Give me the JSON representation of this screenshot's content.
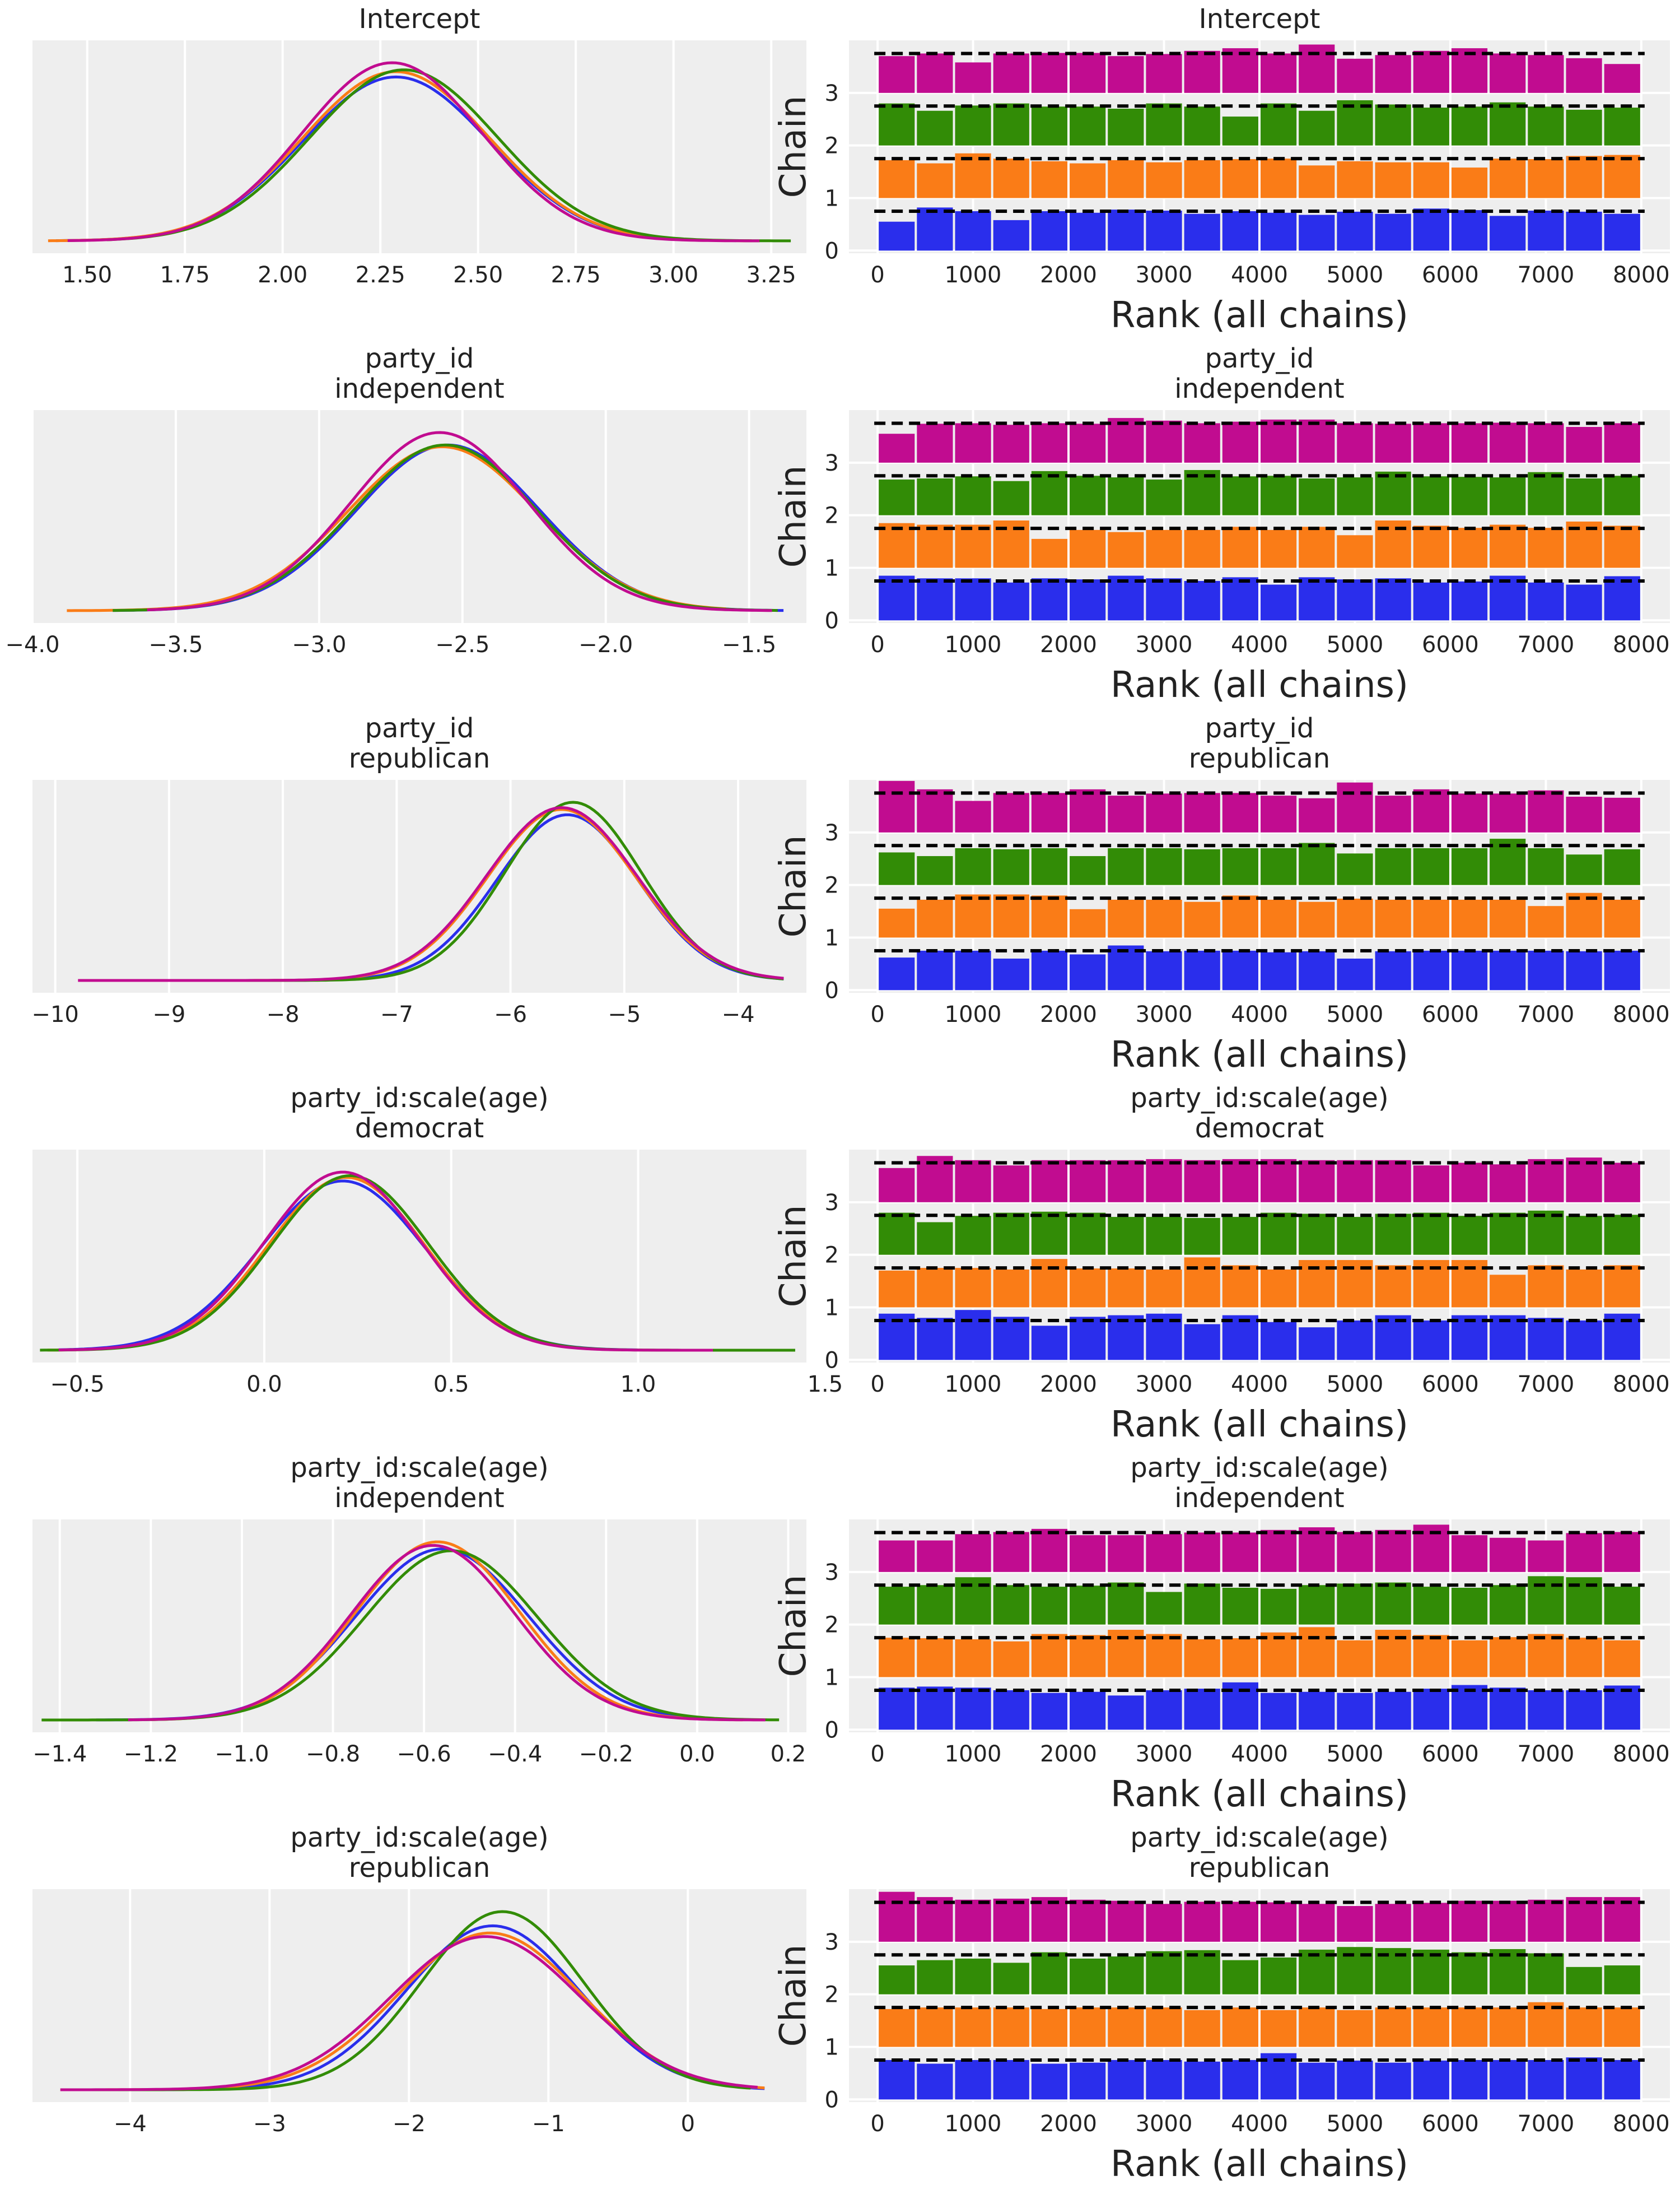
{
  "colors": {
    "chain0": "#2a2eec",
    "chain1": "#fa7c17",
    "chain2": "#328c06",
    "chain3": "#c10c90"
  },
  "rank_axis": {
    "xlabel": "Rank (all chains)",
    "ylabel": "Chain",
    "xlim": [
      -300,
      8300
    ],
    "xticks": [
      0,
      1000,
      2000,
      3000,
      4000,
      5000,
      6000,
      7000,
      8000
    ],
    "yticks": [
      0,
      1,
      2,
      3
    ],
    "bins": 20,
    "draws_per_bin": 400,
    "expected_height": 0.75
  },
  "chart_data": [
    {
      "type": "line",
      "panel": "kde",
      "title": "Intercept",
      "xlim": [
        1.36,
        3.34
      ],
      "xticks": [
        1.5,
        1.75,
        2.0,
        2.25,
        2.5,
        2.75,
        3.0,
        3.25
      ],
      "xtick_labels": [
        "1.50",
        "1.75",
        "2.00",
        "2.25",
        "2.50",
        "2.75",
        "3.00",
        "3.25"
      ],
      "series": [
        {
          "name": "chain 0",
          "mu": 2.29,
          "sd": 0.24,
          "peak": 0.92,
          "x_range": [
            1.42,
            3.16
          ]
        },
        {
          "name": "chain 1",
          "mu": 2.29,
          "sd": 0.24,
          "peak": 0.95,
          "x_range": [
            1.4,
            3.2
          ]
        },
        {
          "name": "chain 2",
          "mu": 2.31,
          "sd": 0.24,
          "peak": 0.96,
          "x_range": [
            1.55,
            3.3
          ]
        },
        {
          "name": "chain 3",
          "mu": 2.28,
          "sd": 0.23,
          "peak": 1.0,
          "x_range": [
            1.45,
            3.22
          ]
        }
      ]
    },
    {
      "type": "bar",
      "panel": "rank",
      "title": "Intercept",
      "series": [
        {
          "name": "chain 0",
          "values": [
            0.55,
            0.82,
            0.75,
            0.58,
            0.75,
            0.72,
            0.78,
            0.76,
            0.7,
            0.75,
            0.72,
            0.68,
            0.74,
            0.7,
            0.8,
            0.77,
            0.66,
            0.76,
            0.74,
            0.7
          ]
        },
        {
          "name": "chain 1",
          "values": [
            0.72,
            0.66,
            0.85,
            0.75,
            0.7,
            0.66,
            0.72,
            0.68,
            0.72,
            0.74,
            0.75,
            0.62,
            0.7,
            0.68,
            0.68,
            0.58,
            0.75,
            0.74,
            0.8,
            0.82
          ]
        },
        {
          "name": "chain 2",
          "values": [
            0.8,
            0.66,
            0.76,
            0.8,
            0.74,
            0.74,
            0.7,
            0.8,
            0.74,
            0.55,
            0.8,
            0.66,
            0.86,
            0.78,
            0.72,
            0.74,
            0.82,
            0.74,
            0.68,
            0.72
          ]
        },
        {
          "name": "chain 3",
          "values": [
            0.7,
            0.75,
            0.58,
            0.75,
            0.76,
            0.76,
            0.7,
            0.74,
            0.8,
            0.85,
            0.75,
            0.92,
            0.65,
            0.72,
            0.8,
            0.85,
            0.75,
            0.72,
            0.66,
            0.55
          ]
        }
      ]
    },
    {
      "type": "line",
      "panel": "kde",
      "title": "party_id\nindependent",
      "xlim": [
        -4.0,
        -1.3
      ],
      "xticks": [
        -4.0,
        -3.5,
        -3.0,
        -2.5,
        -2.0,
        -1.5
      ],
      "xtick_labels": [
        "−4.0",
        "−3.5",
        "−3.0",
        "−2.5",
        "−2.0",
        "−1.5"
      ],
      "series": [
        {
          "name": "chain 0",
          "mu": -2.55,
          "sd": 0.32,
          "peak": 0.93,
          "x_range": [
            -3.72,
            -1.38
          ]
        },
        {
          "name": "chain 1",
          "mu": -2.57,
          "sd": 0.33,
          "peak": 0.92,
          "x_range": [
            -3.88,
            -1.58
          ]
        },
        {
          "name": "chain 2",
          "mu": -2.56,
          "sd": 0.32,
          "peak": 0.93,
          "x_range": [
            -3.72,
            -1.4
          ]
        },
        {
          "name": "chain 3",
          "mu": -2.58,
          "sd": 0.31,
          "peak": 1.0,
          "x_range": [
            -3.6,
            -1.42
          ]
        }
      ]
    },
    {
      "type": "bar",
      "panel": "rank",
      "title": "party_id\nindependent",
      "series": [
        {
          "name": "chain 0",
          "values": [
            0.85,
            0.8,
            0.8,
            0.72,
            0.8,
            0.78,
            0.85,
            0.8,
            0.75,
            0.82,
            0.68,
            0.82,
            0.78,
            0.8,
            0.72,
            0.74,
            0.85,
            0.72,
            0.68,
            0.84
          ]
        },
        {
          "name": "chain 1",
          "values": [
            0.85,
            0.82,
            0.82,
            0.9,
            0.55,
            0.72,
            0.68,
            0.72,
            0.72,
            0.78,
            0.72,
            0.78,
            0.62,
            0.9,
            0.8,
            0.76,
            0.82,
            0.76,
            0.88,
            0.8
          ]
        },
        {
          "name": "chain 2",
          "values": [
            0.68,
            0.7,
            0.74,
            0.65,
            0.84,
            0.75,
            0.72,
            0.68,
            0.86,
            0.74,
            0.75,
            0.7,
            0.72,
            0.83,
            0.74,
            0.73,
            0.72,
            0.82,
            0.7,
            0.75
          ]
        },
        {
          "name": "chain 3",
          "values": [
            0.55,
            0.74,
            0.75,
            0.72,
            0.75,
            0.74,
            0.85,
            0.8,
            0.75,
            0.78,
            0.82,
            0.82,
            0.75,
            0.74,
            0.75,
            0.75,
            0.76,
            0.75,
            0.68,
            0.75
          ]
        }
      ]
    },
    {
      "type": "line",
      "panel": "kde",
      "title": "party_id\nrepublican",
      "xlim": [
        -10.2,
        -3.4
      ],
      "xticks": [
        -10,
        -9,
        -8,
        -7,
        -6,
        -5,
        -4
      ],
      "xtick_labels": [
        "−10",
        "−9",
        "−8",
        "−7",
        "−6",
        "−5",
        "−4"
      ],
      "series": [
        {
          "name": "chain 0",
          "mu": -5.5,
          "sd": 0.62,
          "peak": 0.93,
          "x_range": [
            -9.5,
            -3.6
          ]
        },
        {
          "name": "chain 1",
          "mu": -5.55,
          "sd": 0.65,
          "peak": 0.96,
          "x_range": [
            -9.3,
            -3.85
          ]
        },
        {
          "name": "chain 2",
          "mu": -5.45,
          "sd": 0.6,
          "peak": 1.0,
          "x_range": [
            -9.4,
            -3.6
          ]
        },
        {
          "name": "chain 3",
          "mu": -5.55,
          "sd": 0.66,
          "peak": 0.97,
          "x_range": [
            -9.8,
            -3.6
          ]
        }
      ]
    },
    {
      "type": "bar",
      "panel": "rank",
      "title": "party_id\nrepublican",
      "series": [
        {
          "name": "chain 0",
          "values": [
            0.62,
            0.75,
            0.75,
            0.6,
            0.75,
            0.68,
            0.85,
            0.74,
            0.75,
            0.75,
            0.72,
            0.74,
            0.6,
            0.74,
            0.75,
            0.75,
            0.75,
            0.75,
            0.74,
            0.75
          ]
        },
        {
          "name": "chain 1",
          "values": [
            0.55,
            0.72,
            0.82,
            0.82,
            0.8,
            0.54,
            0.72,
            0.72,
            0.68,
            0.8,
            0.72,
            0.68,
            0.74,
            0.72,
            0.72,
            0.72,
            0.72,
            0.6,
            0.85,
            0.72
          ]
        },
        {
          "name": "chain 2",
          "values": [
            0.62,
            0.55,
            0.7,
            0.68,
            0.7,
            0.55,
            0.7,
            0.7,
            0.68,
            0.7,
            0.7,
            0.8,
            0.6,
            0.7,
            0.7,
            0.7,
            0.88,
            0.7,
            0.58,
            0.68
          ]
        },
        {
          "name": "chain 3",
          "values": [
            0.98,
            0.82,
            0.6,
            0.75,
            0.75,
            0.82,
            0.7,
            0.74,
            0.75,
            0.75,
            0.7,
            0.65,
            0.95,
            0.7,
            0.82,
            0.74,
            0.74,
            0.8,
            0.68,
            0.66
          ]
        }
      ]
    },
    {
      "type": "line",
      "panel": "kde",
      "title": "party_id:scale(age)\ndemocrat",
      "xlim": [
        -0.62,
        1.45
      ],
      "xticks": [
        -0.5,
        0.0,
        0.5,
        1.0,
        1.5
      ],
      "xtick_labels": [
        "−0.5",
        "0.0",
        "0.5",
        "1.0",
        "1.5"
      ],
      "series": [
        {
          "name": "chain 0",
          "mu": 0.21,
          "sd": 0.22,
          "peak": 0.95,
          "x_range": [
            -0.55,
            1.0
          ]
        },
        {
          "name": "chain 1",
          "mu": 0.22,
          "sd": 0.21,
          "peak": 0.97,
          "x_range": [
            -0.58,
            0.95
          ]
        },
        {
          "name": "chain 2",
          "mu": 0.23,
          "sd": 0.21,
          "peak": 0.98,
          "x_range": [
            -0.6,
            1.42
          ]
        },
        {
          "name": "chain 3",
          "mu": 0.21,
          "sd": 0.21,
          "peak": 1.0,
          "x_range": [
            -0.55,
            1.2
          ]
        }
      ]
    },
    {
      "type": "bar",
      "panel": "rank",
      "title": "party_id:scale(age)\ndemocrat",
      "series": [
        {
          "name": "chain 0",
          "values": [
            0.88,
            0.8,
            0.95,
            0.82,
            0.65,
            0.82,
            0.85,
            0.88,
            0.68,
            0.85,
            0.72,
            0.62,
            0.75,
            0.85,
            0.75,
            0.85,
            0.85,
            0.8,
            0.75,
            0.88
          ]
        },
        {
          "name": "chain 1",
          "values": [
            0.7,
            0.75,
            0.75,
            0.72,
            0.92,
            0.74,
            0.74,
            0.72,
            0.95,
            0.8,
            0.72,
            0.9,
            0.9,
            0.8,
            0.9,
            0.9,
            0.62,
            0.8,
            0.72,
            0.8
          ]
        },
        {
          "name": "chain 2",
          "values": [
            0.8,
            0.62,
            0.74,
            0.8,
            0.82,
            0.8,
            0.72,
            0.72,
            0.7,
            0.72,
            0.8,
            0.78,
            0.72,
            0.78,
            0.8,
            0.74,
            0.8,
            0.84,
            0.74,
            0.76
          ]
        },
        {
          "name": "chain 3",
          "values": [
            0.65,
            0.88,
            0.8,
            0.7,
            0.8,
            0.8,
            0.8,
            0.82,
            0.8,
            0.82,
            0.82,
            0.8,
            0.8,
            0.8,
            0.7,
            0.75,
            0.72,
            0.82,
            0.85,
            0.75
          ]
        }
      ]
    },
    {
      "type": "line",
      "panel": "kde",
      "title": "party_id:scale(age)\nindependent",
      "xlim": [
        -1.46,
        0.24
      ],
      "xticks": [
        -1.4,
        -1.2,
        -1.0,
        -0.8,
        -0.6,
        -0.4,
        -0.2,
        0.0,
        0.2
      ],
      "xtick_labels": [
        "−1.4",
        "−1.2",
        "−1.0",
        "−0.8",
        "−0.6",
        "−0.4",
        "−0.2",
        "0.0",
        "0.2"
      ],
      "series": [
        {
          "name": "chain 0",
          "mu": -0.56,
          "sd": 0.19,
          "peak": 0.96,
          "x_range": [
            -1.32,
            0.12
          ]
        },
        {
          "name": "chain 1",
          "mu": -0.57,
          "sd": 0.18,
          "peak": 1.0,
          "x_range": [
            -1.2,
            0.1
          ]
        },
        {
          "name": "chain 2",
          "mu": -0.54,
          "sd": 0.19,
          "peak": 0.95,
          "x_range": [
            -1.44,
            0.18
          ]
        },
        {
          "name": "chain 3",
          "mu": -0.58,
          "sd": 0.18,
          "peak": 0.98,
          "x_range": [
            -1.25,
            0.15
          ]
        }
      ]
    },
    {
      "type": "bar",
      "panel": "rank",
      "title": "party_id:scale(age)\nindependent",
      "series": [
        {
          "name": "chain 0",
          "values": [
            0.8,
            0.82,
            0.8,
            0.75,
            0.7,
            0.72,
            0.65,
            0.75,
            0.78,
            0.9,
            0.7,
            0.72,
            0.7,
            0.72,
            0.78,
            0.85,
            0.8,
            0.75,
            0.75,
            0.84
          ]
        },
        {
          "name": "chain 1",
          "values": [
            0.75,
            0.74,
            0.72,
            0.68,
            0.82,
            0.8,
            0.9,
            0.82,
            0.72,
            0.74,
            0.85,
            0.95,
            0.7,
            0.9,
            0.8,
            0.7,
            0.76,
            0.82,
            0.75,
            0.7
          ]
        },
        {
          "name": "chain 2",
          "values": [
            0.72,
            0.75,
            0.9,
            0.75,
            0.72,
            0.74,
            0.8,
            0.62,
            0.78,
            0.7,
            0.68,
            0.75,
            0.78,
            0.8,
            0.72,
            0.7,
            0.75,
            0.92,
            0.9,
            0.72
          ]
        },
        {
          "name": "chain 3",
          "values": [
            0.6,
            0.6,
            0.72,
            0.76,
            0.82,
            0.7,
            0.7,
            0.72,
            0.75,
            0.75,
            0.8,
            0.85,
            0.76,
            0.8,
            0.9,
            0.7,
            0.65,
            0.6,
            0.74,
            0.76
          ]
        }
      ]
    },
    {
      "type": "line",
      "panel": "kde",
      "title": "party_id:scale(age)\nrepublican",
      "xlim": [
        -4.7,
        0.85
      ],
      "xticks": [
        -4,
        -3,
        -2,
        -1,
        0
      ],
      "xtick_labels": [
        "−4",
        "−3",
        "−2",
        "−1",
        "0"
      ],
      "series": [
        {
          "name": "chain 0",
          "mu": -1.4,
          "sd": 0.62,
          "peak": 0.92,
          "x_range": [
            -4.4,
            0.55
          ]
        },
        {
          "name": "chain 1",
          "mu": -1.42,
          "sd": 0.66,
          "peak": 0.88,
          "x_range": [
            -4.5,
            0.55
          ]
        },
        {
          "name": "chain 2",
          "mu": -1.33,
          "sd": 0.58,
          "peak": 1.0,
          "x_range": [
            -4.3,
            0.45
          ]
        },
        {
          "name": "chain 3",
          "mu": -1.45,
          "sd": 0.68,
          "peak": 0.86,
          "x_range": [
            -4.5,
            0.5
          ]
        }
      ]
    },
    {
      "type": "bar",
      "panel": "rank",
      "title": "party_id:scale(age)\nrepublican",
      "series": [
        {
          "name": "chain 0",
          "values": [
            0.75,
            0.68,
            0.75,
            0.75,
            0.68,
            0.7,
            0.75,
            0.75,
            0.72,
            0.75,
            0.88,
            0.7,
            0.74,
            0.7,
            0.74,
            0.75,
            0.75,
            0.75,
            0.8,
            0.75
          ]
        },
        {
          "name": "chain 1",
          "values": [
            0.72,
            0.75,
            0.75,
            0.75,
            0.72,
            0.75,
            0.75,
            0.75,
            0.7,
            0.75,
            0.7,
            0.75,
            0.7,
            0.75,
            0.75,
            0.75,
            0.75,
            0.85,
            0.75,
            0.75
          ]
        },
        {
          "name": "chain 2",
          "values": [
            0.55,
            0.65,
            0.68,
            0.6,
            0.8,
            0.68,
            0.72,
            0.82,
            0.84,
            0.65,
            0.7,
            0.85,
            0.9,
            0.88,
            0.85,
            0.8,
            0.86,
            0.78,
            0.52,
            0.55
          ]
        },
        {
          "name": "chain 3",
          "values": [
            0.95,
            0.85,
            0.8,
            0.82,
            0.85,
            0.8,
            0.78,
            0.72,
            0.76,
            0.76,
            0.75,
            0.72,
            0.68,
            0.72,
            0.74,
            0.78,
            0.78,
            0.8,
            0.85,
            0.85
          ]
        }
      ]
    }
  ]
}
